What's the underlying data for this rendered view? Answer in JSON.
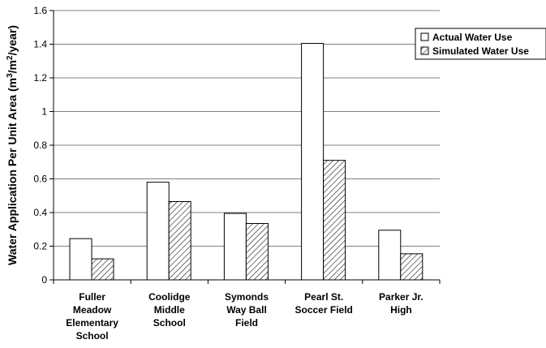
{
  "chart_data": {
    "type": "bar",
    "categories": [
      [
        "Fuller",
        "Meadow",
        "Elementary",
        "School"
      ],
      [
        "Coolidge",
        "Middle",
        "School"
      ],
      [
        "Symonds",
        "Way Ball",
        "Field"
      ],
      [
        "Pearl St.",
        "Soccer Field"
      ],
      [
        "Parker Jr.",
        "High"
      ]
    ],
    "series": [
      {
        "name": "Actual Water Use",
        "values": [
          0.245,
          0.58,
          0.395,
          1.405,
          0.295
        ],
        "pattern": "solid",
        "fill": "#ffffff"
      },
      {
        "name": "Simulated Water Use",
        "values": [
          0.125,
          0.465,
          0.335,
          0.71,
          0.155
        ],
        "pattern": "diagonal-hatch",
        "fill": "#ffffff"
      }
    ],
    "ylabel_parts": [
      "Water Application Per Unit Area (m",
      "3",
      "/m",
      "2",
      "/year)"
    ],
    "ylim": [
      0,
      1.6
    ],
    "yticks": [
      "0",
      "0.2",
      "0.4",
      "0.6",
      "0.8",
      "1",
      "1.2",
      "1.4",
      "1.6"
    ],
    "grid": true,
    "gridline_color": "#808080",
    "legend_position": "right"
  }
}
